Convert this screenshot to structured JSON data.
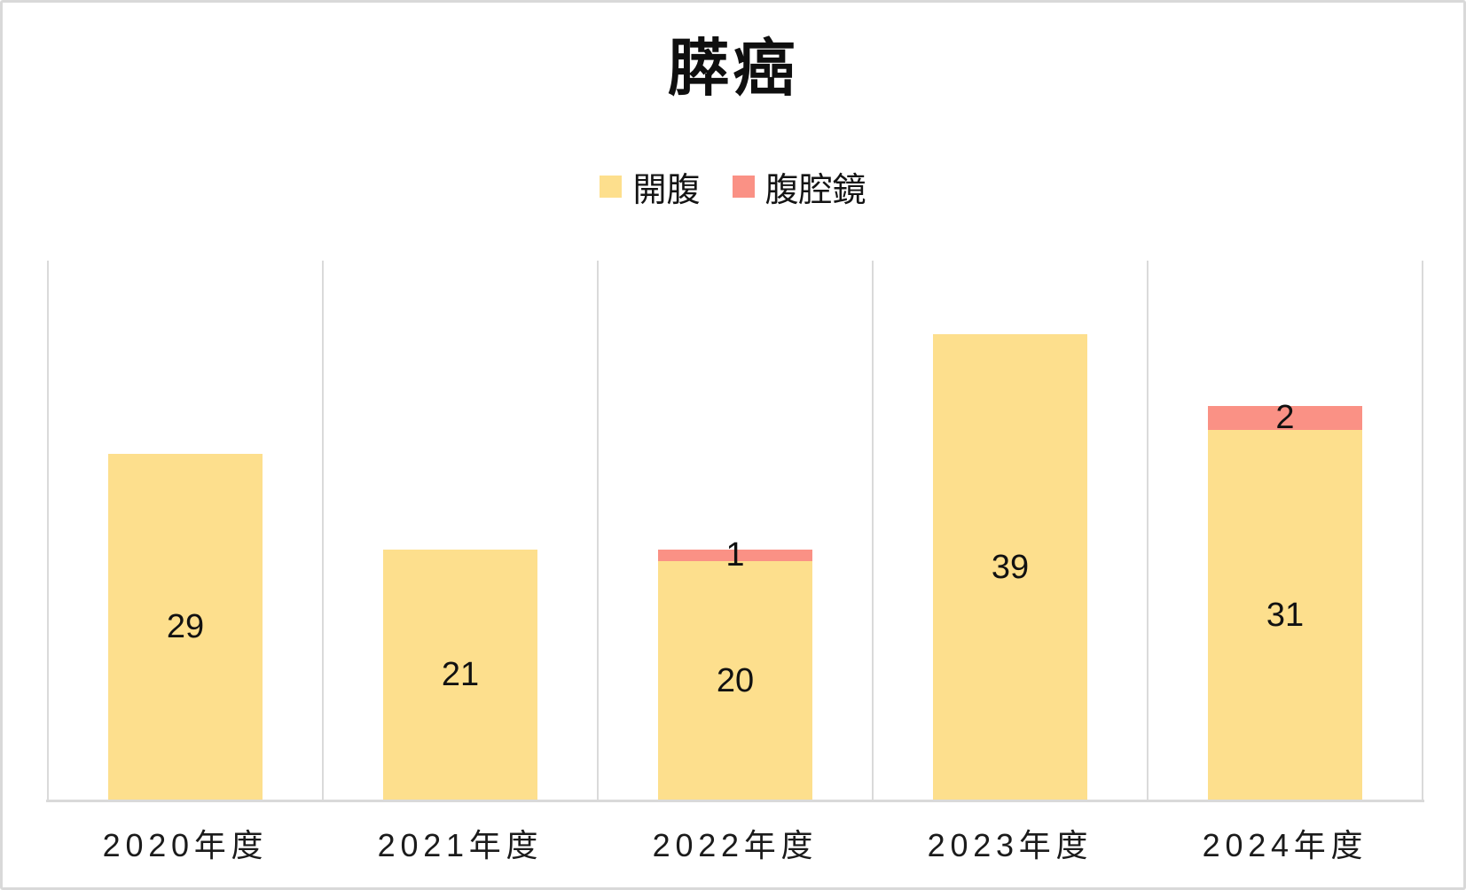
{
  "chart_data": {
    "type": "bar",
    "stacked": true,
    "title": "膵癌",
    "categories": [
      "2020年度",
      "2021年度",
      "2022年度",
      "2023年度",
      "2024年度"
    ],
    "series": [
      {
        "name": "開腹",
        "color": "#FDDF8D",
        "values": [
          29,
          21,
          20,
          39,
          31
        ]
      },
      {
        "name": "腹腔鏡",
        "color": "#FA9185",
        "values": [
          0,
          0,
          1,
          0,
          2
        ]
      }
    ],
    "ylim": [
      0,
      45
    ],
    "xlabel": "",
    "ylabel": "",
    "legend_position": "top-center",
    "data_labels": "center",
    "gridlines": "vertical-category-separators-only"
  },
  "colors": {
    "grid": "#DADADA",
    "axis": "#D9D9D9",
    "border": "#D9D9D9",
    "label_text": "#111111",
    "background": "#FFFFFF"
  }
}
